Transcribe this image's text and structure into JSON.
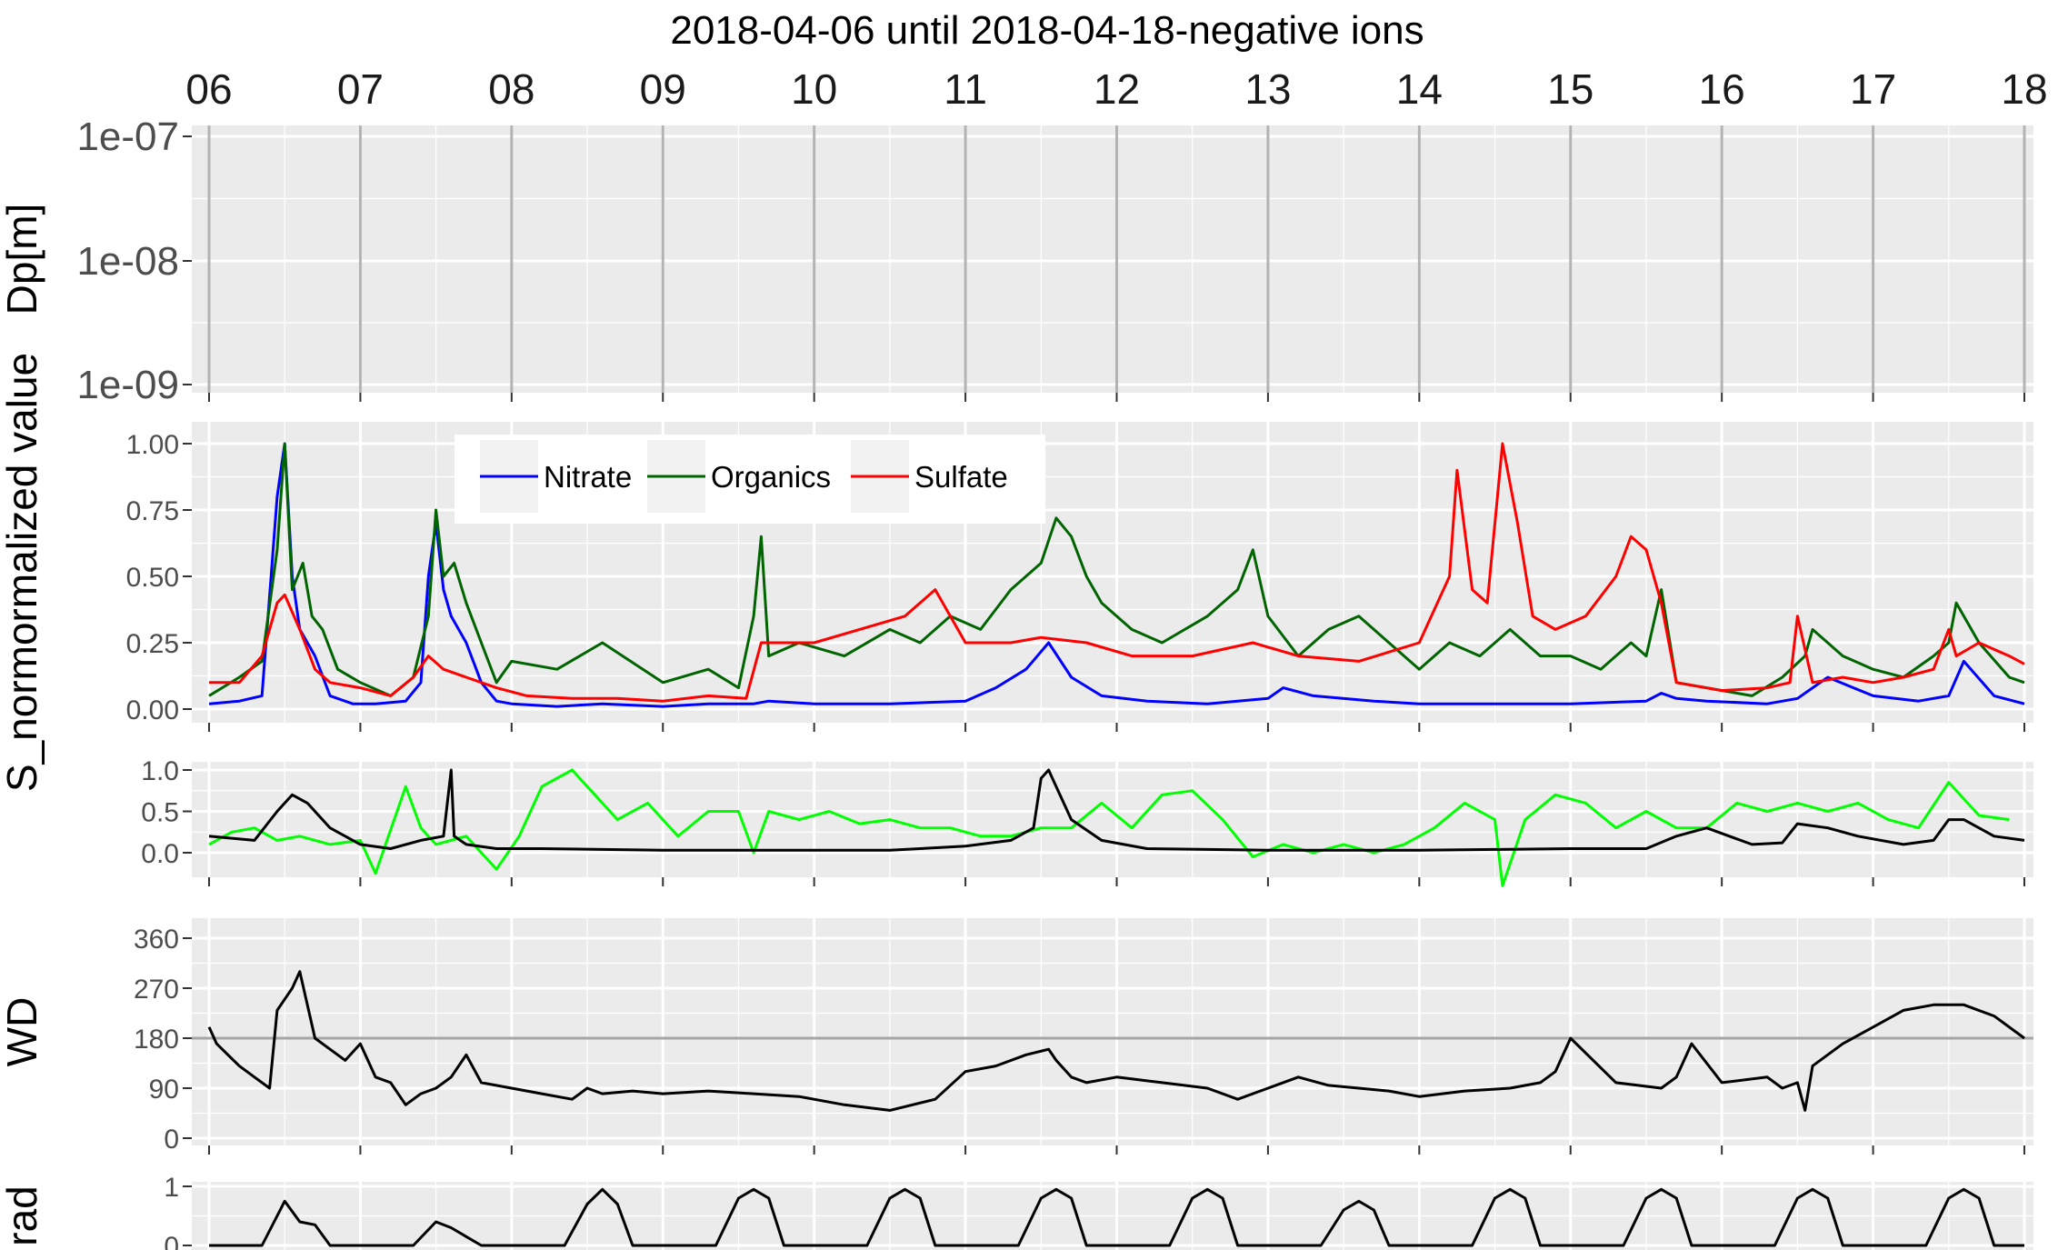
{
  "title": "2018-04-06 until 2018-04-18-negative ions",
  "chart_data": [
    {
      "type": "line",
      "panel": "dp",
      "ylabel": "Dp[m]",
      "yscale": "log",
      "yticks": [
        "1e-07",
        "1e-08",
        "1e-09"
      ],
      "x_ticks": [
        "06",
        "07",
        "08",
        "09",
        "10",
        "11",
        "12",
        "13",
        "14",
        "15",
        "16",
        "17",
        "18"
      ],
      "xlim_days": [
        6,
        18
      ],
      "grid": true
    },
    {
      "type": "line",
      "panel": "composition",
      "ylabel": "S_normormalized value",
      "ylim": [
        0,
        1
      ],
      "yticks": [
        "1.00",
        "0.75",
        "0.50",
        "0.25",
        "0.00"
      ],
      "legend_position": "top-left",
      "series": [
        {
          "name": "Nitrate",
          "color": "#0000ff",
          "x": [
            6.0,
            6.2,
            6.35,
            6.45,
            6.5,
            6.55,
            6.6,
            6.65,
            6.7,
            6.8,
            6.95,
            7.1,
            7.3,
            7.4,
            7.45,
            7.5,
            7.55,
            7.6,
            7.7,
            7.8,
            7.9,
            8.0,
            8.3,
            8.6,
            9.0,
            9.3,
            9.6,
            9.7,
            10.0,
            10.5,
            11.0,
            11.2,
            11.4,
            11.55,
            11.7,
            11.9,
            12.2,
            12.6,
            13.0,
            13.1,
            13.3,
            13.7,
            14.0,
            14.5,
            15.0,
            15.5,
            15.6,
            15.7,
            15.9,
            16.3,
            16.5,
            16.7,
            17.0,
            17.3,
            17.5,
            17.6,
            17.8,
            18.0
          ],
          "y": [
            0.02,
            0.03,
            0.05,
            0.8,
            1.0,
            0.5,
            0.3,
            0.25,
            0.2,
            0.05,
            0.02,
            0.02,
            0.03,
            0.1,
            0.5,
            0.7,
            0.45,
            0.35,
            0.25,
            0.1,
            0.03,
            0.02,
            0.01,
            0.02,
            0.01,
            0.02,
            0.02,
            0.03,
            0.02,
            0.02,
            0.03,
            0.08,
            0.15,
            0.25,
            0.12,
            0.05,
            0.03,
            0.02,
            0.04,
            0.08,
            0.05,
            0.03,
            0.02,
            0.02,
            0.02,
            0.03,
            0.06,
            0.04,
            0.03,
            0.02,
            0.04,
            0.12,
            0.05,
            0.03,
            0.05,
            0.18,
            0.05,
            0.02
          ]
        },
        {
          "name": "Organics",
          "color": "#006400",
          "x": [
            6.0,
            6.2,
            6.35,
            6.45,
            6.5,
            6.55,
            6.62,
            6.68,
            6.75,
            6.85,
            7.0,
            7.2,
            7.35,
            7.45,
            7.5,
            7.55,
            7.62,
            7.7,
            7.8,
            7.9,
            8.0,
            8.3,
            8.6,
            9.0,
            9.3,
            9.5,
            9.6,
            9.65,
            9.7,
            9.9,
            10.2,
            10.5,
            10.7,
            10.9,
            11.1,
            11.3,
            11.5,
            11.6,
            11.7,
            11.8,
            11.9,
            12.1,
            12.3,
            12.6,
            12.8,
            12.9,
            13.0,
            13.2,
            13.4,
            13.6,
            13.8,
            14.0,
            14.2,
            14.4,
            14.6,
            14.8,
            15.0,
            15.2,
            15.4,
            15.5,
            15.6,
            15.7,
            15.9,
            16.2,
            16.4,
            16.55,
            16.6,
            16.8,
            17.0,
            17.2,
            17.4,
            17.5,
            17.55,
            17.7,
            17.9,
            18.0
          ],
          "y": [
            0.05,
            0.12,
            0.18,
            0.6,
            1.0,
            0.45,
            0.55,
            0.35,
            0.3,
            0.15,
            0.1,
            0.05,
            0.12,
            0.35,
            0.75,
            0.5,
            0.55,
            0.4,
            0.25,
            0.1,
            0.18,
            0.15,
            0.25,
            0.1,
            0.15,
            0.08,
            0.35,
            0.65,
            0.2,
            0.25,
            0.2,
            0.3,
            0.25,
            0.35,
            0.3,
            0.45,
            0.55,
            0.72,
            0.65,
            0.5,
            0.4,
            0.3,
            0.25,
            0.35,
            0.45,
            0.6,
            0.35,
            0.2,
            0.3,
            0.35,
            0.25,
            0.15,
            0.25,
            0.2,
            0.3,
            0.2,
            0.2,
            0.15,
            0.25,
            0.2,
            0.45,
            0.1,
            0.08,
            0.05,
            0.12,
            0.2,
            0.3,
            0.2,
            0.15,
            0.12,
            0.2,
            0.25,
            0.4,
            0.25,
            0.12,
            0.1
          ]
        },
        {
          "name": "Sulfate",
          "color": "#ff0000",
          "x": [
            6.0,
            6.2,
            6.35,
            6.45,
            6.5,
            6.6,
            6.7,
            6.8,
            7.0,
            7.2,
            7.35,
            7.45,
            7.55,
            7.7,
            7.9,
            8.1,
            8.4,
            8.7,
            9.0,
            9.3,
            9.55,
            9.65,
            9.8,
            10.0,
            10.3,
            10.6,
            10.8,
            11.0,
            11.3,
            11.5,
            11.8,
            12.1,
            12.5,
            12.9,
            13.2,
            13.6,
            14.0,
            14.2,
            14.25,
            14.35,
            14.45,
            14.55,
            14.65,
            14.75,
            14.9,
            15.1,
            15.3,
            15.4,
            15.5,
            15.6,
            15.7,
            16.0,
            16.3,
            16.45,
            16.5,
            16.6,
            16.8,
            17.0,
            17.2,
            17.4,
            17.5,
            17.55,
            17.7,
            17.9,
            18.0
          ],
          "y": [
            0.1,
            0.1,
            0.2,
            0.4,
            0.43,
            0.3,
            0.15,
            0.1,
            0.08,
            0.05,
            0.12,
            0.2,
            0.15,
            0.12,
            0.08,
            0.05,
            0.04,
            0.04,
            0.03,
            0.05,
            0.04,
            0.25,
            0.25,
            0.25,
            0.3,
            0.35,
            0.45,
            0.25,
            0.25,
            0.27,
            0.25,
            0.2,
            0.2,
            0.25,
            0.2,
            0.18,
            0.25,
            0.5,
            0.9,
            0.45,
            0.4,
            1.0,
            0.7,
            0.35,
            0.3,
            0.35,
            0.5,
            0.65,
            0.6,
            0.4,
            0.1,
            0.07,
            0.08,
            0.1,
            0.35,
            0.1,
            0.12,
            0.1,
            0.12,
            0.15,
            0.3,
            0.2,
            0.25,
            0.2,
            0.17
          ]
        }
      ]
    },
    {
      "type": "line",
      "panel": "cs",
      "ylim": [
        -0.35,
        1.0
      ],
      "yticks": [
        "1.0",
        "0.5",
        "0.0"
      ],
      "series": [
        {
          "color": "#00ff00",
          "x": [
            6.0,
            6.15,
            6.3,
            6.45,
            6.6,
            6.8,
            7.0,
            7.1,
            7.3,
            7.4,
            7.5,
            7.7,
            7.9,
            8.05,
            8.2,
            8.4,
            8.55,
            8.7,
            8.9,
            9.1,
            9.3,
            9.5,
            9.6,
            9.7,
            9.9,
            10.1,
            10.3,
            10.5,
            10.7,
            10.9,
            11.1,
            11.3,
            11.5,
            11.7,
            11.9,
            12.1,
            12.3,
            12.5,
            12.7,
            12.9,
            13.1,
            13.3,
            13.5,
            13.7,
            13.9,
            14.1,
            14.3,
            14.5,
            14.55,
            14.7,
            14.9,
            15.1,
            15.3,
            15.5,
            15.7,
            15.9,
            16.1,
            16.3,
            16.5,
            16.7,
            16.9,
            17.1,
            17.3,
            17.5,
            17.7,
            17.9
          ],
          "y": [
            0.1,
            0.25,
            0.3,
            0.15,
            0.2,
            0.1,
            0.15,
            -0.25,
            0.8,
            0.3,
            0.1,
            0.2,
            -0.2,
            0.2,
            0.8,
            1.0,
            0.7,
            0.4,
            0.6,
            0.2,
            0.5,
            0.5,
            0.0,
            0.5,
            0.4,
            0.5,
            0.35,
            0.4,
            0.3,
            0.3,
            0.2,
            0.2,
            0.3,
            0.3,
            0.6,
            0.3,
            0.7,
            0.75,
            0.4,
            -0.05,
            0.1,
            0.0,
            0.1,
            0.0,
            0.1,
            0.3,
            0.6,
            0.4,
            -0.4,
            0.4,
            0.7,
            0.6,
            0.3,
            0.5,
            0.3,
            0.3,
            0.6,
            0.5,
            0.6,
            0.5,
            0.6,
            0.4,
            0.3,
            0.85,
            0.45,
            0.4
          ]
        },
        {
          "color": "#000000",
          "x": [
            6.0,
            6.3,
            6.45,
            6.55,
            6.65,
            6.8,
            7.0,
            7.2,
            7.4,
            7.55,
            7.6,
            7.62,
            7.7,
            7.9,
            8.2,
            8.6,
            9.0,
            9.5,
            10.0,
            10.5,
            11.0,
            11.3,
            11.45,
            11.5,
            11.55,
            11.6,
            11.7,
            11.9,
            12.2,
            12.6,
            13.0,
            13.5,
            14.0,
            14.5,
            15.0,
            15.5,
            15.7,
            15.9,
            16.2,
            16.4,
            16.5,
            16.7,
            16.9,
            17.2,
            17.4,
            17.5,
            17.6,
            17.8,
            18.0
          ],
          "y": [
            0.2,
            0.15,
            0.5,
            0.7,
            0.6,
            0.3,
            0.1,
            0.05,
            0.15,
            0.2,
            1.0,
            0.2,
            0.1,
            0.05,
            0.05,
            0.04,
            0.03,
            0.03,
            0.03,
            0.03,
            0.08,
            0.15,
            0.3,
            0.9,
            1.0,
            0.8,
            0.4,
            0.15,
            0.05,
            0.04,
            0.03,
            0.03,
            0.03,
            0.04,
            0.05,
            0.05,
            0.2,
            0.3,
            0.1,
            0.12,
            0.35,
            0.3,
            0.2,
            0.1,
            0.15,
            0.4,
            0.4,
            0.2,
            0.15
          ]
        }
      ]
    },
    {
      "type": "line",
      "panel": "wd",
      "ylabel": "WD",
      "ylim": [
        0,
        360
      ],
      "yticks": [
        "360",
        "270",
        "180",
        "90",
        "0"
      ],
      "hline": 180,
      "series": [
        {
          "color": "#000000",
          "x": [
            6.0,
            6.05,
            6.2,
            6.3,
            6.4,
            6.45,
            6.5,
            6.55,
            6.6,
            6.7,
            6.8,
            6.9,
            7.0,
            7.1,
            7.2,
            7.3,
            7.4,
            7.5,
            7.6,
            7.7,
            7.8,
            8.0,
            8.2,
            8.4,
            8.5,
            8.6,
            8.8,
            9.0,
            9.3,
            9.6,
            9.9,
            10.2,
            10.5,
            10.8,
            11.0,
            11.2,
            11.4,
            11.55,
            11.6,
            11.7,
            11.8,
            12.0,
            12.3,
            12.6,
            12.8,
            13.0,
            13.2,
            13.4,
            13.6,
            13.8,
            14.0,
            14.3,
            14.6,
            14.8,
            14.9,
            15.0,
            15.3,
            15.6,
            15.7,
            15.8,
            16.0,
            16.3,
            16.4,
            16.5,
            16.55,
            16.6,
            16.8,
            17.0,
            17.2,
            17.4,
            17.6,
            17.8,
            18.0
          ],
          "y": [
            200,
            170,
            130,
            110,
            90,
            230,
            250,
            270,
            300,
            180,
            160,
            140,
            170,
            110,
            100,
            60,
            80,
            90,
            110,
            150,
            100,
            90,
            80,
            70,
            90,
            80,
            85,
            80,
            85,
            80,
            75,
            60,
            50,
            70,
            120,
            130,
            150,
            160,
            140,
            110,
            100,
            110,
            100,
            90,
            70,
            90,
            110,
            95,
            90,
            85,
            75,
            85,
            90,
            100,
            120,
            180,
            100,
            90,
            110,
            170,
            100,
            110,
            90,
            100,
            50,
            130,
            170,
            200,
            230,
            240,
            240,
            220,
            180
          ]
        }
      ]
    },
    {
      "type": "line",
      "panel": "rad",
      "ylabel": "rad",
      "ylim": [
        0,
        1
      ],
      "yticks": [
        "1",
        "0"
      ],
      "series": [
        {
          "color": "#000000",
          "x": [
            6.0,
            6.35,
            6.45,
            6.5,
            6.6,
            6.7,
            6.8,
            7.0,
            7.35,
            7.5,
            7.6,
            7.7,
            7.8,
            8.0,
            8.35,
            8.5,
            8.6,
            8.7,
            8.8,
            9.0,
            9.35,
            9.5,
            9.6,
            9.7,
            9.8,
            10.0,
            10.35,
            10.5,
            10.6,
            10.7,
            10.8,
            11.0,
            11.35,
            11.5,
            11.6,
            11.7,
            11.8,
            12.0,
            12.35,
            12.5,
            12.6,
            12.7,
            12.8,
            13.0,
            13.35,
            13.5,
            13.6,
            13.7,
            13.8,
            14.0,
            14.35,
            14.5,
            14.6,
            14.7,
            14.8,
            15.0,
            15.35,
            15.5,
            15.6,
            15.7,
            15.8,
            16.0,
            16.35,
            16.5,
            16.6,
            16.7,
            16.8,
            17.0,
            17.35,
            17.5,
            17.6,
            17.7,
            17.8,
            18.0
          ],
          "y": [
            0,
            0,
            0.5,
            0.75,
            0.4,
            0.35,
            0,
            0,
            0,
            0.4,
            0.3,
            0.15,
            0,
            0,
            0,
            0.7,
            0.95,
            0.7,
            0,
            0,
            0,
            0.8,
            0.95,
            0.8,
            0,
            0,
            0,
            0.8,
            0.95,
            0.8,
            0,
            0,
            0,
            0.8,
            0.95,
            0.8,
            0,
            0,
            0,
            0.8,
            0.95,
            0.8,
            0,
            0,
            0,
            0.6,
            0.75,
            0.6,
            0,
            0,
            0,
            0.8,
            0.95,
            0.8,
            0,
            0,
            0,
            0.8,
            0.95,
            0.8,
            0,
            0,
            0,
            0.8,
            0.95,
            0.8,
            0,
            0,
            0,
            0.8,
            0.95,
            0.8,
            0,
            0
          ]
        }
      ]
    }
  ]
}
